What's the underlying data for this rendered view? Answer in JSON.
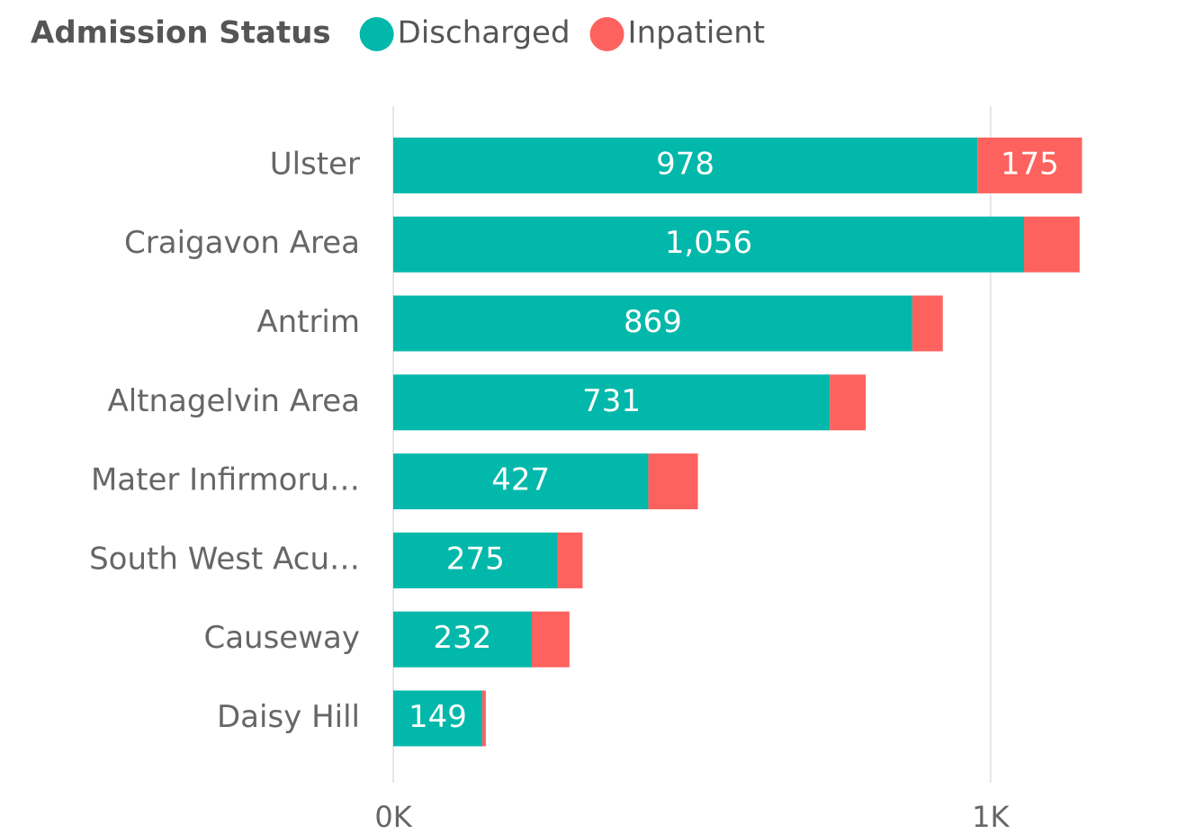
{
  "chart_data": {
    "type": "stacked-bar-horizontal",
    "legend_title": "Admission Status",
    "categories": [
      "Ulster",
      "Craigavon Area",
      "Antrim",
      "Altnagelvin Area",
      "Mater Infirmoru…",
      "South West Acu…",
      "Causeway",
      "Daisy Hill"
    ],
    "series": [
      {
        "name": "Discharged",
        "color": "#01b8aa",
        "values": [
          978,
          1056,
          869,
          731,
          427,
          275,
          232,
          149
        ],
        "value_labels": [
          "978",
          "1,056",
          "869",
          "731",
          "427",
          "275",
          "232",
          "149"
        ]
      },
      {
        "name": "Inpatient",
        "color": "#fd625e",
        "values": [
          175,
          93,
          51,
          60,
          83,
          42,
          63,
          6
        ],
        "value_labels": [
          "175",
          null,
          null,
          null,
          null,
          null,
          null,
          null
        ]
      }
    ],
    "xlim": [
      0,
      1300
    ],
    "xticks": [
      {
        "value": 0,
        "label": "0K"
      },
      {
        "value": 1000,
        "label": "1K"
      }
    ],
    "grid": true,
    "legend_position": "top-left"
  }
}
